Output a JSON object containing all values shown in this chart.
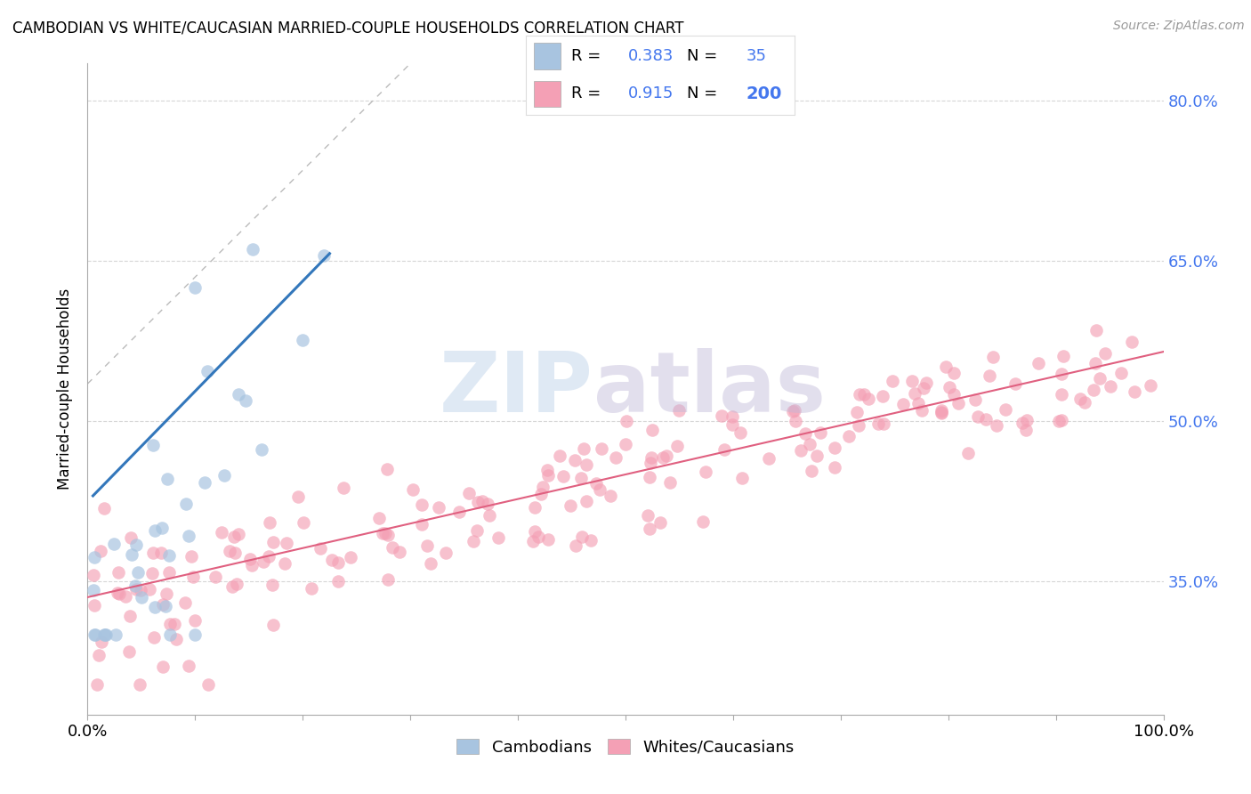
{
  "title": "CAMBODIAN VS WHITE/CAUCASIAN MARRIED-COUPLE HOUSEHOLDS CORRELATION CHART",
  "source": "Source: ZipAtlas.com",
  "ylabel": "Married-couple Households",
  "background_color": "#ffffff",
  "grid_color": "#cccccc",
  "blue_scatter_color": "#a8c4e0",
  "pink_scatter_color": "#f4a0b5",
  "blue_line_color": "#3377bb",
  "pink_line_color": "#e06080",
  "ref_line_color": "#bbbbbb",
  "right_axis_color": "#4477ee",
  "right_yticks": [
    0.35,
    0.5,
    0.65,
    0.8
  ],
  "right_ytick_labels": [
    "35.0%",
    "50.0%",
    "65.0%",
    "80.0%"
  ],
  "ylim": [
    0.225,
    0.835
  ],
  "xlim": [
    0.0,
    1.0
  ],
  "legend_R1": "0.383",
  "legend_N1": "35",
  "legend_R2": "0.915",
  "legend_N2": "200",
  "camb_seed": 42,
  "white_seed": 7
}
